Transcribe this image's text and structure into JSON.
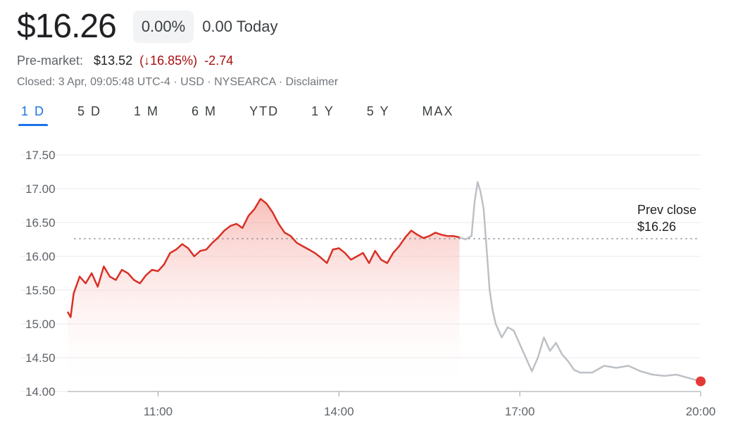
{
  "header": {
    "price": "$16.26",
    "change_percent": "0.00%",
    "change_today": "0.00 Today"
  },
  "premarket": {
    "label": "Pre-market:",
    "price": "$13.52",
    "change_percent": "(↓16.85%)",
    "change_value": "-2.74"
  },
  "meta": {
    "status": "Closed: 3 Apr, 09:05:48 UTC-4 · USD · NYSEARCA · Disclaimer"
  },
  "tabs": [
    {
      "label": "1 D",
      "active": true
    },
    {
      "label": "5 D",
      "active": false
    },
    {
      "label": "1 M",
      "active": false
    },
    {
      "label": "6 M",
      "active": false
    },
    {
      "label": "YTD",
      "active": false
    },
    {
      "label": "1 Y",
      "active": false
    },
    {
      "label": "5 Y",
      "active": false
    },
    {
      "label": "MAX",
      "active": false
    }
  ],
  "colors": {
    "regular_line": "#d93025",
    "extended_line": "#bdc1c6",
    "fill_top": "#f28b82",
    "marker": "#e53935",
    "gridline": "#e8eaed",
    "axis_text": "#5f6368"
  },
  "chart_data": {
    "type": "line",
    "y_ticks": [
      "17.50",
      "17.00",
      "16.50",
      "16.00",
      "15.50",
      "15.00",
      "14.50",
      "14.00"
    ],
    "x_ticks": [
      "11:00",
      "14:00",
      "17:00",
      "20:00"
    ],
    "ylim": [
      14.0,
      17.5
    ],
    "xlim": [
      9.5,
      20.0
    ],
    "grid": true,
    "reference": {
      "label_line1": "Prev close",
      "label_line2": "$16.26",
      "value": 16.26
    },
    "series": [
      {
        "segment": "regular",
        "x": [
          9.5,
          9.55,
          9.6,
          9.7,
          9.8,
          9.9,
          10.0,
          10.1,
          10.2,
          10.3,
          10.4,
          10.5,
          10.6,
          10.7,
          10.8,
          10.9,
          11.0,
          11.1,
          11.2,
          11.3,
          11.4,
          11.5,
          11.6,
          11.7,
          11.8,
          11.9,
          12.0,
          12.1,
          12.2,
          12.3,
          12.4,
          12.5,
          12.6,
          12.7,
          12.8,
          12.9,
          13.0,
          13.1,
          13.2,
          13.3,
          13.4,
          13.5,
          13.6,
          13.7,
          13.8,
          13.9,
          14.0,
          14.1,
          14.2,
          14.3,
          14.4,
          14.5,
          14.6,
          14.7,
          14.8,
          14.9,
          15.0,
          15.1,
          15.2,
          15.3,
          15.4,
          15.5,
          15.6,
          15.7,
          15.8,
          15.9,
          16.0
        ],
        "y": [
          15.18,
          15.1,
          15.45,
          15.7,
          15.6,
          15.75,
          15.55,
          15.85,
          15.7,
          15.65,
          15.8,
          15.75,
          15.65,
          15.6,
          15.72,
          15.8,
          15.78,
          15.88,
          16.05,
          16.1,
          16.18,
          16.12,
          16.0,
          16.08,
          16.1,
          16.2,
          16.28,
          16.38,
          16.45,
          16.48,
          16.42,
          16.6,
          16.7,
          16.85,
          16.78,
          16.65,
          16.48,
          16.35,
          16.3,
          16.2,
          16.15,
          16.1,
          16.05,
          15.98,
          15.9,
          16.1,
          16.12,
          16.05,
          15.95,
          16.0,
          16.05,
          15.9,
          16.08,
          15.95,
          15.9,
          16.05,
          16.15,
          16.28,
          16.38,
          16.32,
          16.27,
          16.3,
          16.35,
          16.32,
          16.3,
          16.3,
          16.28
        ]
      },
      {
        "segment": "extended",
        "x": [
          16.0,
          16.1,
          16.2,
          16.25,
          16.3,
          16.35,
          16.4,
          16.45,
          16.5,
          16.55,
          16.6,
          16.7,
          16.8,
          16.9,
          17.0,
          17.1,
          17.2,
          17.3,
          17.4,
          17.5,
          17.6,
          17.7,
          17.8,
          17.9,
          18.0,
          18.2,
          18.4,
          18.6,
          18.8,
          19.0,
          19.2,
          19.4,
          19.6,
          19.8,
          20.0
        ],
        "y": [
          16.28,
          16.25,
          16.3,
          16.8,
          17.1,
          16.95,
          16.7,
          16.1,
          15.5,
          15.2,
          15.0,
          14.8,
          14.95,
          14.9,
          14.7,
          14.5,
          14.3,
          14.5,
          14.8,
          14.6,
          14.72,
          14.55,
          14.45,
          14.32,
          14.28,
          14.28,
          14.38,
          14.35,
          14.38,
          14.3,
          14.25,
          14.23,
          14.25,
          14.2,
          14.15
        ]
      }
    ],
    "last_point": {
      "x": 20.0,
      "y": 14.15
    }
  }
}
